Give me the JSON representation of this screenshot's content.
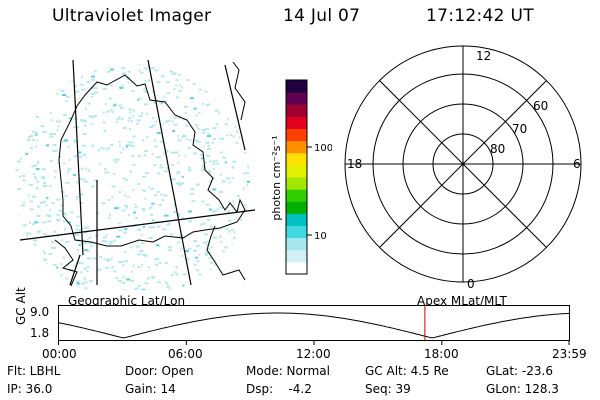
{
  "header": {
    "instrument": "Ultraviolet Imager",
    "date": "14 Jul 07",
    "time": "17:12:42 UT"
  },
  "colorbar": {
    "unit_label": "photon cm⁻²s⁻¹",
    "ticks": [
      {
        "label": "100",
        "value": 100
      },
      {
        "label": "10",
        "value": 10
      }
    ],
    "colors": [
      "#ffffff",
      "#d0f0f4",
      "#a6e8ee",
      "#40d8e0",
      "#00c0c0",
      "#00b000",
      "#30d000",
      "#a0e800",
      "#e0f000",
      "#ffe000",
      "#ff9000",
      "#ff4000",
      "#e00020",
      "#a00030",
      "#600050",
      "#200040"
    ]
  },
  "polar": {
    "mlt_labels": {
      "top": "12",
      "right": "6",
      "bottom": "0",
      "left": "18"
    },
    "lat_labels": [
      "60",
      "70",
      "80"
    ]
  },
  "timeline": {
    "left_title": "Geographic Lat/Lon",
    "right_title": "Apex  MLat/MLT",
    "axis_name": "GC Alt",
    "y_top": "9.0",
    "y_bottom": "1.8",
    "ticks": [
      "00:00",
      "06:00",
      "12:00",
      "18:00",
      "23:59"
    ],
    "marker_time_h": 17.21
  },
  "info": {
    "col1": [
      "Flt: LBHL",
      "IP: 36.0"
    ],
    "col2": [
      "Door: Open",
      "Gain: 14"
    ],
    "col3": [
      "Mode: Normal",
      "Dsp:    -4.2"
    ],
    "col4": [
      "GC Alt: 4.5 Re",
      "Seq: 39"
    ],
    "col5": [
      "GLat: -23.6",
      "GLon: 128.3"
    ]
  },
  "colors": {
    "marker": "#cc0000",
    "speckle": "#b8e8ec"
  }
}
